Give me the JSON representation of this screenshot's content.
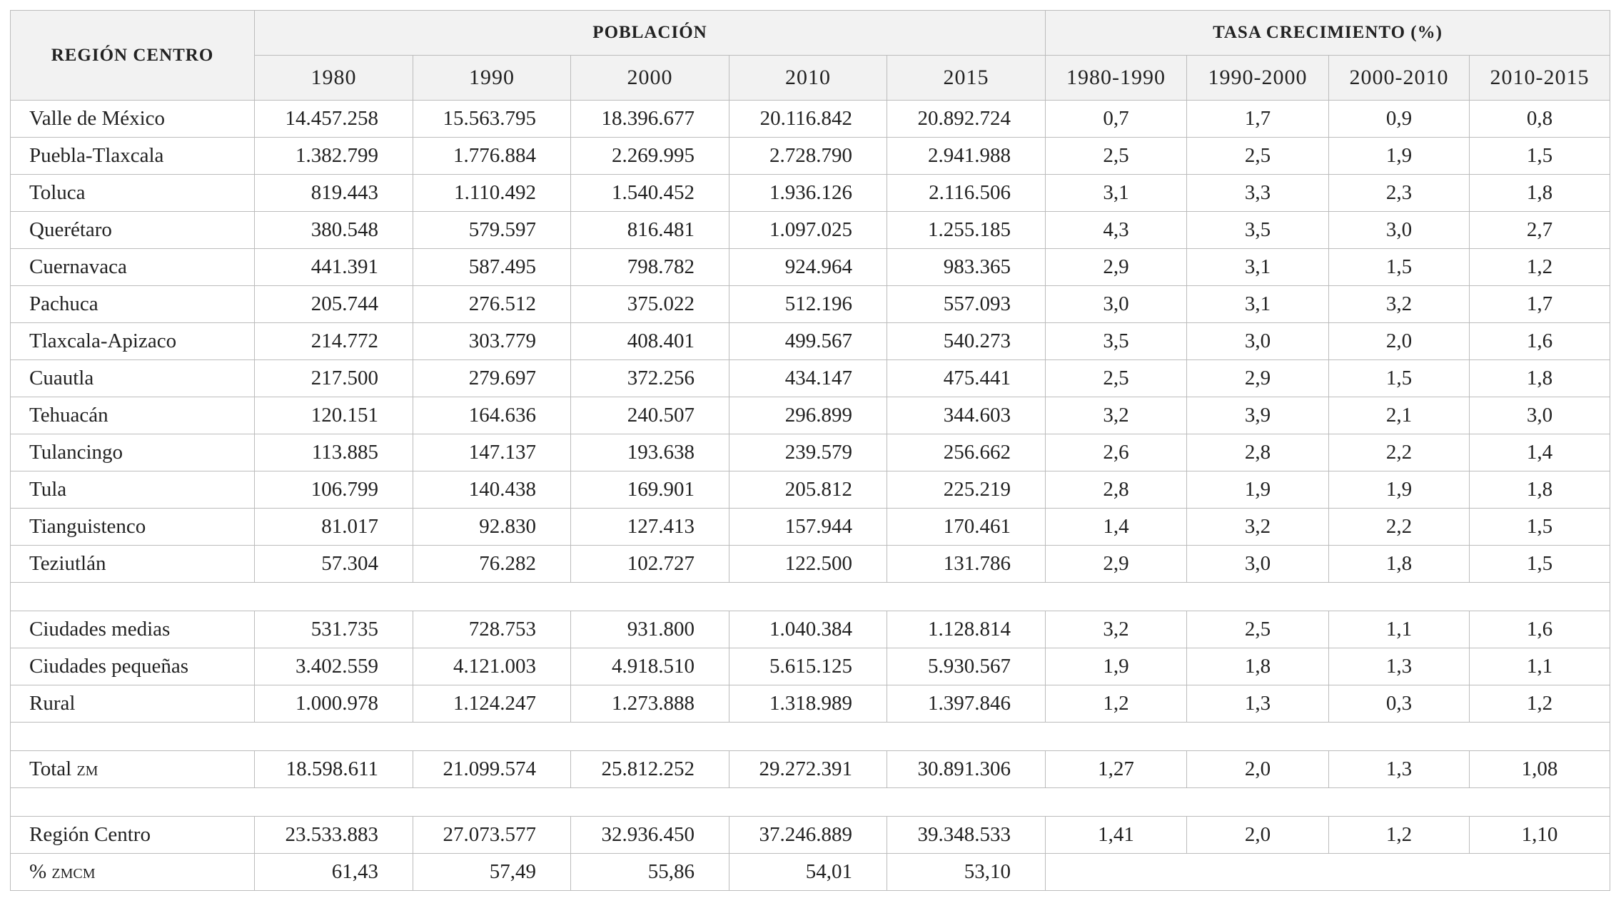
{
  "table": {
    "header": {
      "region": "REGIÓN CENTRO",
      "population": "POBLACIÓN",
      "growth": "TASA CRECIMIENTO (%)",
      "years": [
        "1980",
        "1990",
        "2000",
        "2010",
        "2015"
      ],
      "periods": [
        "1980-1990",
        "1990-2000",
        "2000-2010",
        "2010-2015"
      ]
    },
    "groups": [
      [
        {
          "label": "Valle de México",
          "population": [
            "14.457.258",
            "15.563.795",
            "18.396.677",
            "20.116.842",
            "20.892.724"
          ],
          "growth": [
            "0,7",
            "1,7",
            "0,9",
            "0,8"
          ]
        },
        {
          "label": "Puebla-Tlaxcala",
          "population": [
            "1.382.799",
            "1.776.884",
            "2.269.995",
            "2.728.790",
            "2.941.988"
          ],
          "growth": [
            "2,5",
            "2,5",
            "1,9",
            "1,5"
          ]
        },
        {
          "label": "Toluca",
          "population": [
            "819.443",
            "1.110.492",
            "1.540.452",
            "1.936.126",
            "2.116.506"
          ],
          "growth": [
            "3,1",
            "3,3",
            "2,3",
            "1,8"
          ]
        },
        {
          "label": "Querétaro",
          "population": [
            "380.548",
            "579.597",
            "816.481",
            "1.097.025",
            "1.255.185"
          ],
          "growth": [
            "4,3",
            "3,5",
            "3,0",
            "2,7"
          ]
        },
        {
          "label": "Cuernavaca",
          "population": [
            "441.391",
            "587.495",
            "798.782",
            "924.964",
            "983.365"
          ],
          "growth": [
            "2,9",
            "3,1",
            "1,5",
            "1,2"
          ]
        },
        {
          "label": "Pachuca",
          "population": [
            "205.744",
            "276.512",
            "375.022",
            "512.196",
            "557.093"
          ],
          "growth": [
            "3,0",
            "3,1",
            "3,2",
            "1,7"
          ]
        },
        {
          "label": "Tlaxcala-Apizaco",
          "population": [
            "214.772",
            "303.779",
            "408.401",
            "499.567",
            "540.273"
          ],
          "growth": [
            "3,5",
            "3,0",
            "2,0",
            "1,6"
          ]
        },
        {
          "label": "Cuautla",
          "population": [
            "217.500",
            "279.697",
            "372.256",
            "434.147",
            "475.441"
          ],
          "growth": [
            "2,5",
            "2,9",
            "1,5",
            "1,8"
          ]
        },
        {
          "label": "Tehuacán",
          "population": [
            "120.151",
            "164.636",
            "240.507",
            "296.899",
            "344.603"
          ],
          "growth": [
            "3,2",
            "3,9",
            "2,1",
            "3,0"
          ]
        },
        {
          "label": "Tulancingo",
          "population": [
            "113.885",
            "147.137",
            "193.638",
            "239.579",
            "256.662"
          ],
          "growth": [
            "2,6",
            "2,8",
            "2,2",
            "1,4"
          ]
        },
        {
          "label": "Tula",
          "population": [
            "106.799",
            "140.438",
            "169.901",
            "205.812",
            "225.219"
          ],
          "growth": [
            "2,8",
            "1,9",
            "1,9",
            "1,8"
          ]
        },
        {
          "label": "Tianguistenco",
          "population": [
            "81.017",
            "92.830",
            "127.413",
            "157.944",
            "170.461"
          ],
          "growth": [
            "1,4",
            "3,2",
            "2,2",
            "1,5"
          ]
        },
        {
          "label": "Teziutlán",
          "population": [
            "57.304",
            "76.282",
            "102.727",
            "122.500",
            "131.786"
          ],
          "growth": [
            "2,9",
            "3,0",
            "1,8",
            "1,5"
          ]
        }
      ],
      [
        {
          "label": "Ciudades medias",
          "population": [
            "531.735",
            "728.753",
            "931.800",
            "1.040.384",
            "1.128.814"
          ],
          "growth": [
            "3,2",
            "2,5",
            "1,1",
            "1,6"
          ]
        },
        {
          "label": "Ciudades pequeñas",
          "population": [
            "3.402.559",
            "4.121.003",
            "4.918.510",
            "5.615.125",
            "5.930.567"
          ],
          "growth": [
            "1,9",
            "1,8",
            "1,3",
            "1,1"
          ]
        },
        {
          "label": "Rural",
          "population": [
            "1.000.978",
            "1.124.247",
            "1.273.888",
            "1.318.989",
            "1.397.846"
          ],
          "growth": [
            "1,2",
            "1,3",
            "0,3",
            "1,2"
          ]
        }
      ],
      [
        {
          "label": "Total",
          "abbr": "zm",
          "population": [
            "18.598.611",
            "21.099.574",
            "25.812.252",
            "29.272.391",
            "30.891.306"
          ],
          "growth": [
            "1,27",
            "2,0",
            "1,3",
            "1,08"
          ]
        }
      ],
      [
        {
          "label": "Región Centro",
          "population": [
            "23.533.883",
            "27.073.577",
            "32.936.450",
            "37.246.889",
            "39.348.533"
          ],
          "growth": [
            "1,41",
            "2,0",
            "1,2",
            "1,10"
          ]
        },
        {
          "label": "%",
          "abbr": "zmcm",
          "population": [
            "61,43",
            "57,49",
            "55,86",
            "54,01",
            "53,10"
          ]
        }
      ]
    ]
  }
}
